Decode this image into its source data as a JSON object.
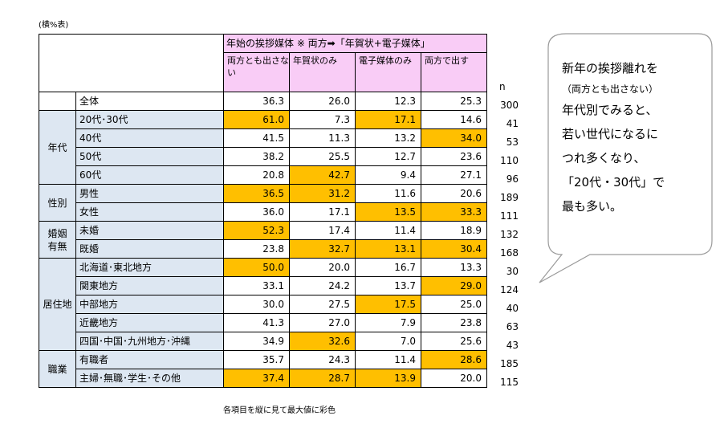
{
  "unit_note": "(横%表)",
  "header": {
    "span_label": "年始の挨拶媒体 ※ 両方➡「年賀状+電子媒体」",
    "columns": [
      "両方とも出さない",
      "年賀状のみ",
      "電子媒体のみ",
      "両方で出す"
    ],
    "n_label": "n"
  },
  "chart_data": {
    "type": "table",
    "columns": [
      "両方とも出さない",
      "年賀状のみ",
      "電子媒体のみ",
      "両方で出す",
      "n"
    ],
    "groups": [
      {
        "category": "",
        "rows": [
          {
            "label": "全体",
            "values": [
              "36.3",
              "26.0",
              "12.3",
              "25.3"
            ],
            "n": "300",
            "highlight": [
              false,
              false,
              false,
              false
            ]
          }
        ]
      },
      {
        "category": "年代",
        "rows": [
          {
            "label": "20代･30代",
            "values": [
              "61.0",
              "7.3",
              "17.1",
              "14.6"
            ],
            "n": "41",
            "highlight": [
              true,
              false,
              true,
              false
            ]
          },
          {
            "label": "40代",
            "values": [
              "41.5",
              "11.3",
              "13.2",
              "34.0"
            ],
            "n": "53",
            "highlight": [
              false,
              false,
              false,
              true
            ]
          },
          {
            "label": "50代",
            "values": [
              "38.2",
              "25.5",
              "12.7",
              "23.6"
            ],
            "n": "110",
            "highlight": [
              false,
              false,
              false,
              false
            ]
          },
          {
            "label": "60代",
            "values": [
              "20.8",
              "42.7",
              "9.4",
              "27.1"
            ],
            "n": "96",
            "highlight": [
              false,
              true,
              false,
              false
            ]
          }
        ]
      },
      {
        "category": "性別",
        "rows": [
          {
            "label": "男性",
            "values": [
              "36.5",
              "31.2",
              "11.6",
              "20.6"
            ],
            "n": "189",
            "highlight": [
              true,
              true,
              false,
              false
            ]
          },
          {
            "label": "女性",
            "values": [
              "36.0",
              "17.1",
              "13.5",
              "33.3"
            ],
            "n": "111",
            "highlight": [
              false,
              false,
              true,
              true
            ]
          }
        ]
      },
      {
        "category": "婚姻有無",
        "rows": [
          {
            "label": "未婚",
            "values": [
              "52.3",
              "17.4",
              "11.4",
              "18.9"
            ],
            "n": "132",
            "highlight": [
              true,
              false,
              false,
              false
            ]
          },
          {
            "label": "既婚",
            "values": [
              "23.8",
              "32.7",
              "13.1",
              "30.4"
            ],
            "n": "168",
            "highlight": [
              false,
              true,
              true,
              true
            ]
          }
        ]
      },
      {
        "category": "居住地",
        "rows": [
          {
            "label": "北海道･東北地方",
            "values": [
              "50.0",
              "20.0",
              "16.7",
              "13.3"
            ],
            "n": "30",
            "highlight": [
              true,
              false,
              false,
              false
            ]
          },
          {
            "label": "関東地方",
            "values": [
              "33.1",
              "24.2",
              "13.7",
              "29.0"
            ],
            "n": "124",
            "highlight": [
              false,
              false,
              false,
              true
            ]
          },
          {
            "label": "中部地方",
            "values": [
              "30.0",
              "27.5",
              "17.5",
              "25.0"
            ],
            "n": "40",
            "highlight": [
              false,
              false,
              true,
              false
            ]
          },
          {
            "label": "近畿地方",
            "values": [
              "41.3",
              "27.0",
              "7.9",
              "23.8"
            ],
            "n": "63",
            "highlight": [
              false,
              false,
              false,
              false
            ]
          },
          {
            "label": "四国･中国･九州地方･沖縄",
            "values": [
              "34.9",
              "32.6",
              "7.0",
              "25.6"
            ],
            "n": "43",
            "highlight": [
              false,
              true,
              false,
              false
            ]
          }
        ]
      },
      {
        "category": "職業",
        "rows": [
          {
            "label": "有職者",
            "values": [
              "35.7",
              "24.3",
              "11.4",
              "28.6"
            ],
            "n": "185",
            "highlight": [
              false,
              false,
              false,
              true
            ]
          },
          {
            "label": "主婦･無職･学生･その他",
            "values": [
              "37.4",
              "28.7",
              "13.9",
              "20.0"
            ],
            "n": "115",
            "highlight": [
              true,
              true,
              true,
              false
            ]
          }
        ]
      }
    ]
  },
  "footnote": "各項目を縦に見て最大値に彩色",
  "callout": {
    "lines": [
      "新年の挨拶離れを",
      "（両方とも出さない）",
      "年代別でみると、",
      "若い世代になるに",
      "つれ多くなり、",
      "「20代・30代」で",
      "最も多い。"
    ]
  },
  "colors": {
    "header_pink": "#f9ccf6",
    "label_blue": "#dde7f2",
    "highlight_orange": "#ffbf00"
  }
}
